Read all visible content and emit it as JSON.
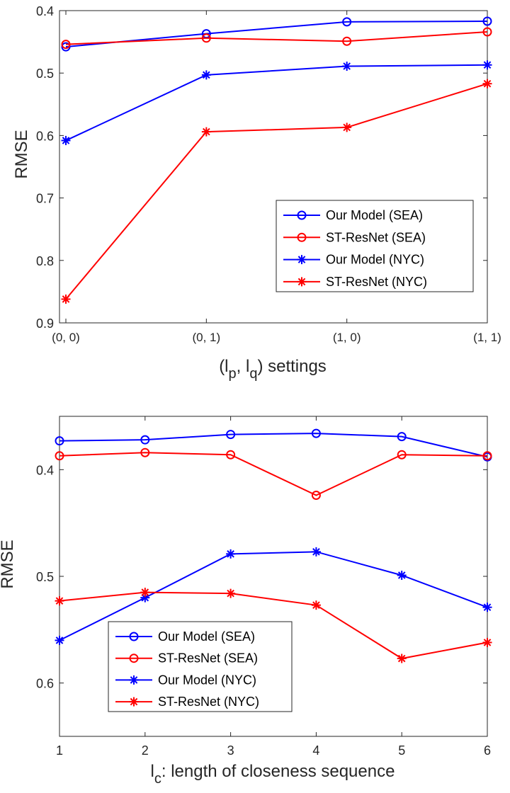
{
  "chart_data": [
    {
      "type": "line",
      "categories": [
        "(0, 0)",
        "(0, 1)",
        "(1, 0)",
        "(1, 1)"
      ],
      "xlabel_prefix": "(l",
      "xlabel_sub1": "p",
      "xlabel_mid": ", l",
      "xlabel_sub2": "q",
      "xlabel_suffix": ") settings",
      "ylabel": "RMSE",
      "ylim": [
        0.4,
        0.9
      ],
      "y_reversed": true,
      "yticks": [
        "0.4",
        "0.5",
        "0.6",
        "0.7",
        "0.8",
        "0.9"
      ],
      "ytick_values": [
        0.4,
        0.5,
        0.6,
        0.7,
        0.8,
        0.9
      ],
      "legend_position": "bottom-right",
      "grid": false,
      "series": [
        {
          "name": "Our Model (SEA)",
          "marker": "circle",
          "color": "#0000ff",
          "values": [
            0.458,
            0.437,
            0.418,
            0.417
          ]
        },
        {
          "name": "ST-ResNet (SEA)",
          "marker": "circle",
          "color": "#ff0000",
          "values": [
            0.454,
            0.444,
            0.449,
            0.434
          ]
        },
        {
          "name": "Our Model (NYC)",
          "marker": "star",
          "color": "#0000ff",
          "values": [
            0.608,
            0.503,
            0.489,
            0.487
          ]
        },
        {
          "name": "ST-ResNet (NYC)",
          "marker": "star",
          "color": "#ff0000",
          "values": [
            0.862,
            0.594,
            0.587,
            0.517
          ]
        }
      ]
    },
    {
      "type": "line",
      "categories": [
        "1",
        "2",
        "3",
        "4",
        "5",
        "6"
      ],
      "xlabel_prefix": "l",
      "xlabel_sub1": "c",
      "xlabel_suffix": ": length of closeness sequence",
      "ylabel": "RMSE",
      "ylim": [
        0.35,
        0.65
      ],
      "y_reversed": true,
      "yticks": [
        "0.4",
        "0.5",
        "0.6"
      ],
      "ytick_values": [
        0.4,
        0.5,
        0.6
      ],
      "legend_position": "bottom-left",
      "grid": false,
      "series": [
        {
          "name": "Our Model (SEA)",
          "marker": "circle",
          "color": "#0000ff",
          "values": [
            0.373,
            0.372,
            0.367,
            0.366,
            0.369,
            0.388
          ]
        },
        {
          "name": "ST-ResNet (SEA)",
          "marker": "circle",
          "color": "#ff0000",
          "values": [
            0.387,
            0.384,
            0.386,
            0.424,
            0.386,
            0.387
          ]
        },
        {
          "name": "Our Model (NYC)",
          "marker": "star",
          "color": "#0000ff",
          "values": [
            0.56,
            0.52,
            0.479,
            0.477,
            0.499,
            0.529
          ]
        },
        {
          "name": "ST-ResNet (NYC)",
          "marker": "star",
          "color": "#ff0000",
          "values": [
            0.523,
            0.515,
            0.516,
            0.527,
            0.577,
            0.562
          ]
        }
      ]
    }
  ]
}
